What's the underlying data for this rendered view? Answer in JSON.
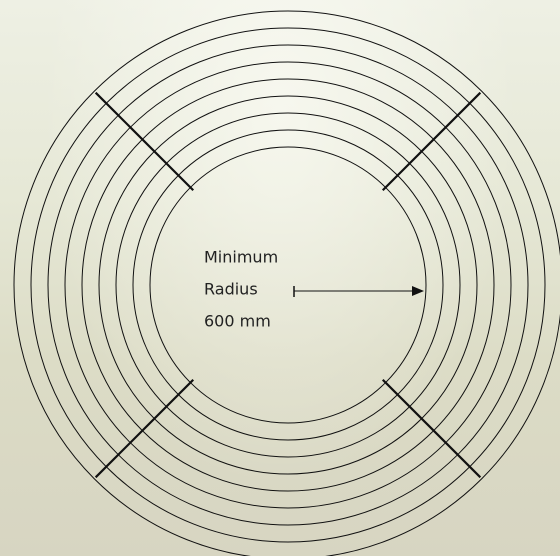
{
  "annotation": {
    "lines": [
      "Minimum",
      "Radius",
      "600 mm"
    ]
  }
}
